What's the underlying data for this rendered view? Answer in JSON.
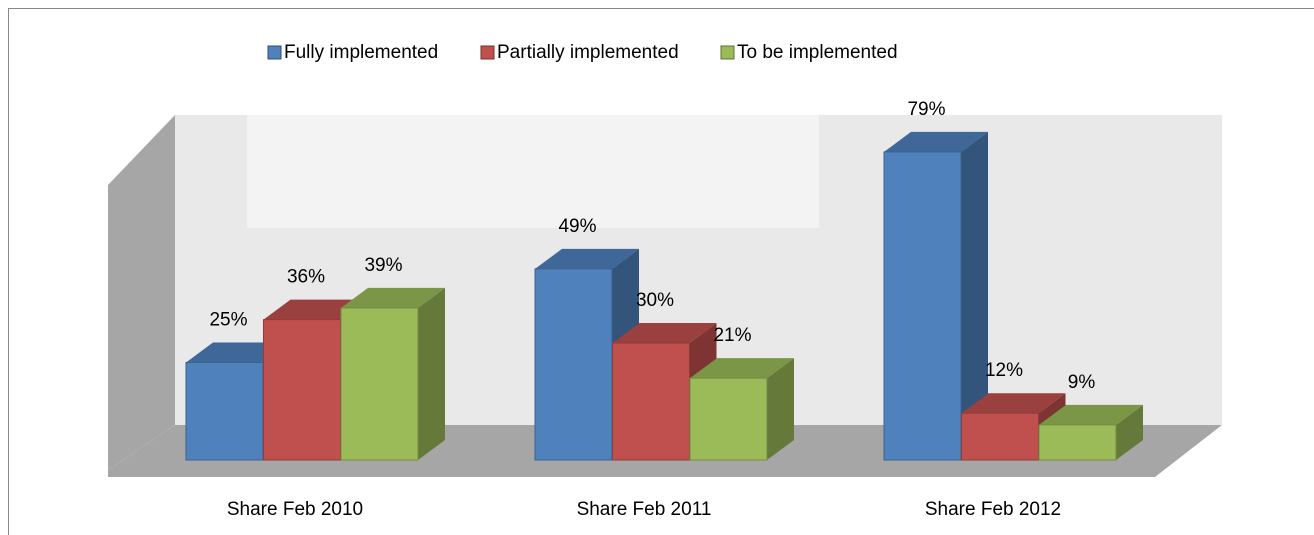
{
  "chart_data": {
    "type": "bar3d",
    "categories": [
      "Share Feb 2010",
      "Share Feb 2011",
      "Share Feb 2012"
    ],
    "series": [
      {
        "name": "Fully implemented",
        "color": "#4f81bd",
        "values": [
          25,
          49,
          79
        ],
        "value_labels": [
          "25%",
          "49%",
          "79%"
        ]
      },
      {
        "name": "Partially implemented",
        "color": "#c0504d",
        "values": [
          36,
          30,
          12
        ],
        "value_labels": [
          "36%",
          "30%",
          "12%"
        ]
      },
      {
        "name": "To be  implemented",
        "color": "#9bbb59",
        "values": [
          39,
          21,
          9
        ],
        "value_labels": [
          "39%",
          "21%",
          "9%"
        ]
      }
    ],
    "legend": "top"
  }
}
